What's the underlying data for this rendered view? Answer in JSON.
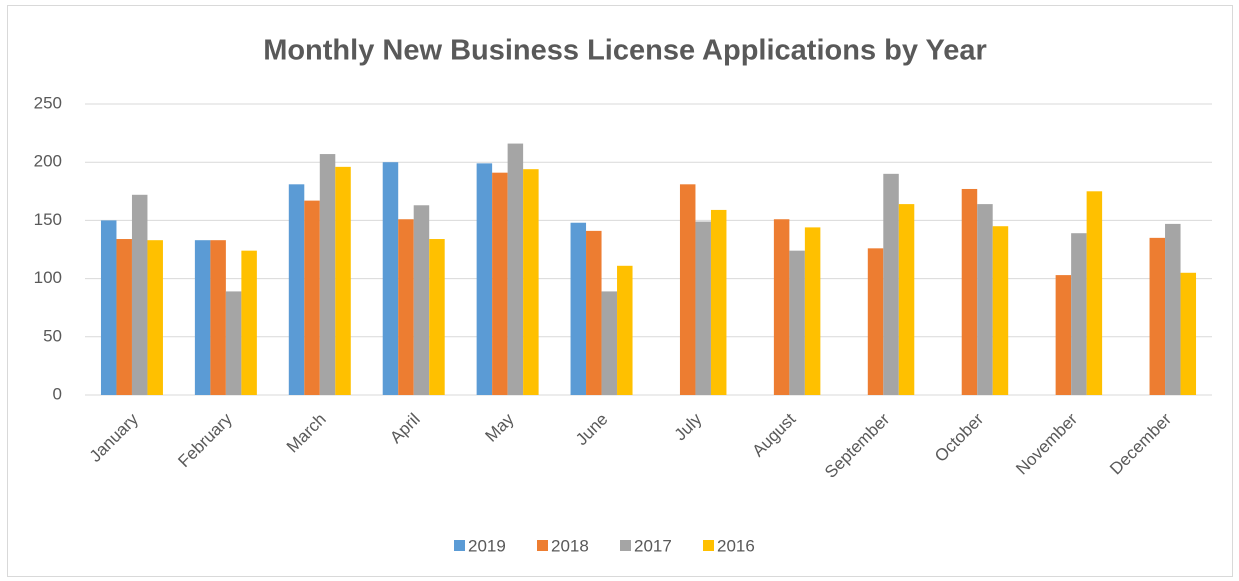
{
  "chart_data": {
    "type": "bar",
    "title": "Monthly New Business License Applications by Year",
    "categories": [
      "January",
      "February",
      "March",
      "April",
      "May",
      "June",
      "July",
      "August",
      "September",
      "October",
      "November",
      "December"
    ],
    "series": [
      {
        "name": "2019",
        "color": "#5b9bd5",
        "values": [
          150,
          133,
          181,
          200,
          199,
          148,
          null,
          null,
          null,
          null,
          null,
          null
        ]
      },
      {
        "name": "2018",
        "color": "#ed7d31",
        "values": [
          134,
          133,
          167,
          151,
          191,
          141,
          181,
          151,
          126,
          177,
          103,
          135
        ]
      },
      {
        "name": "2017",
        "color": "#a5a5a5",
        "values": [
          172,
          89,
          207,
          163,
          216,
          89,
          149,
          124,
          190,
          164,
          139,
          147
        ]
      },
      {
        "name": "2016",
        "color": "#ffc000",
        "values": [
          133,
          124,
          196,
          134,
          194,
          111,
          159,
          144,
          164,
          145,
          175,
          105
        ]
      }
    ],
    "ylim": [
      0,
      250
    ],
    "yticks": [
      0,
      50,
      100,
      150,
      200,
      250
    ],
    "grid": true,
    "legend": "bottom"
  }
}
